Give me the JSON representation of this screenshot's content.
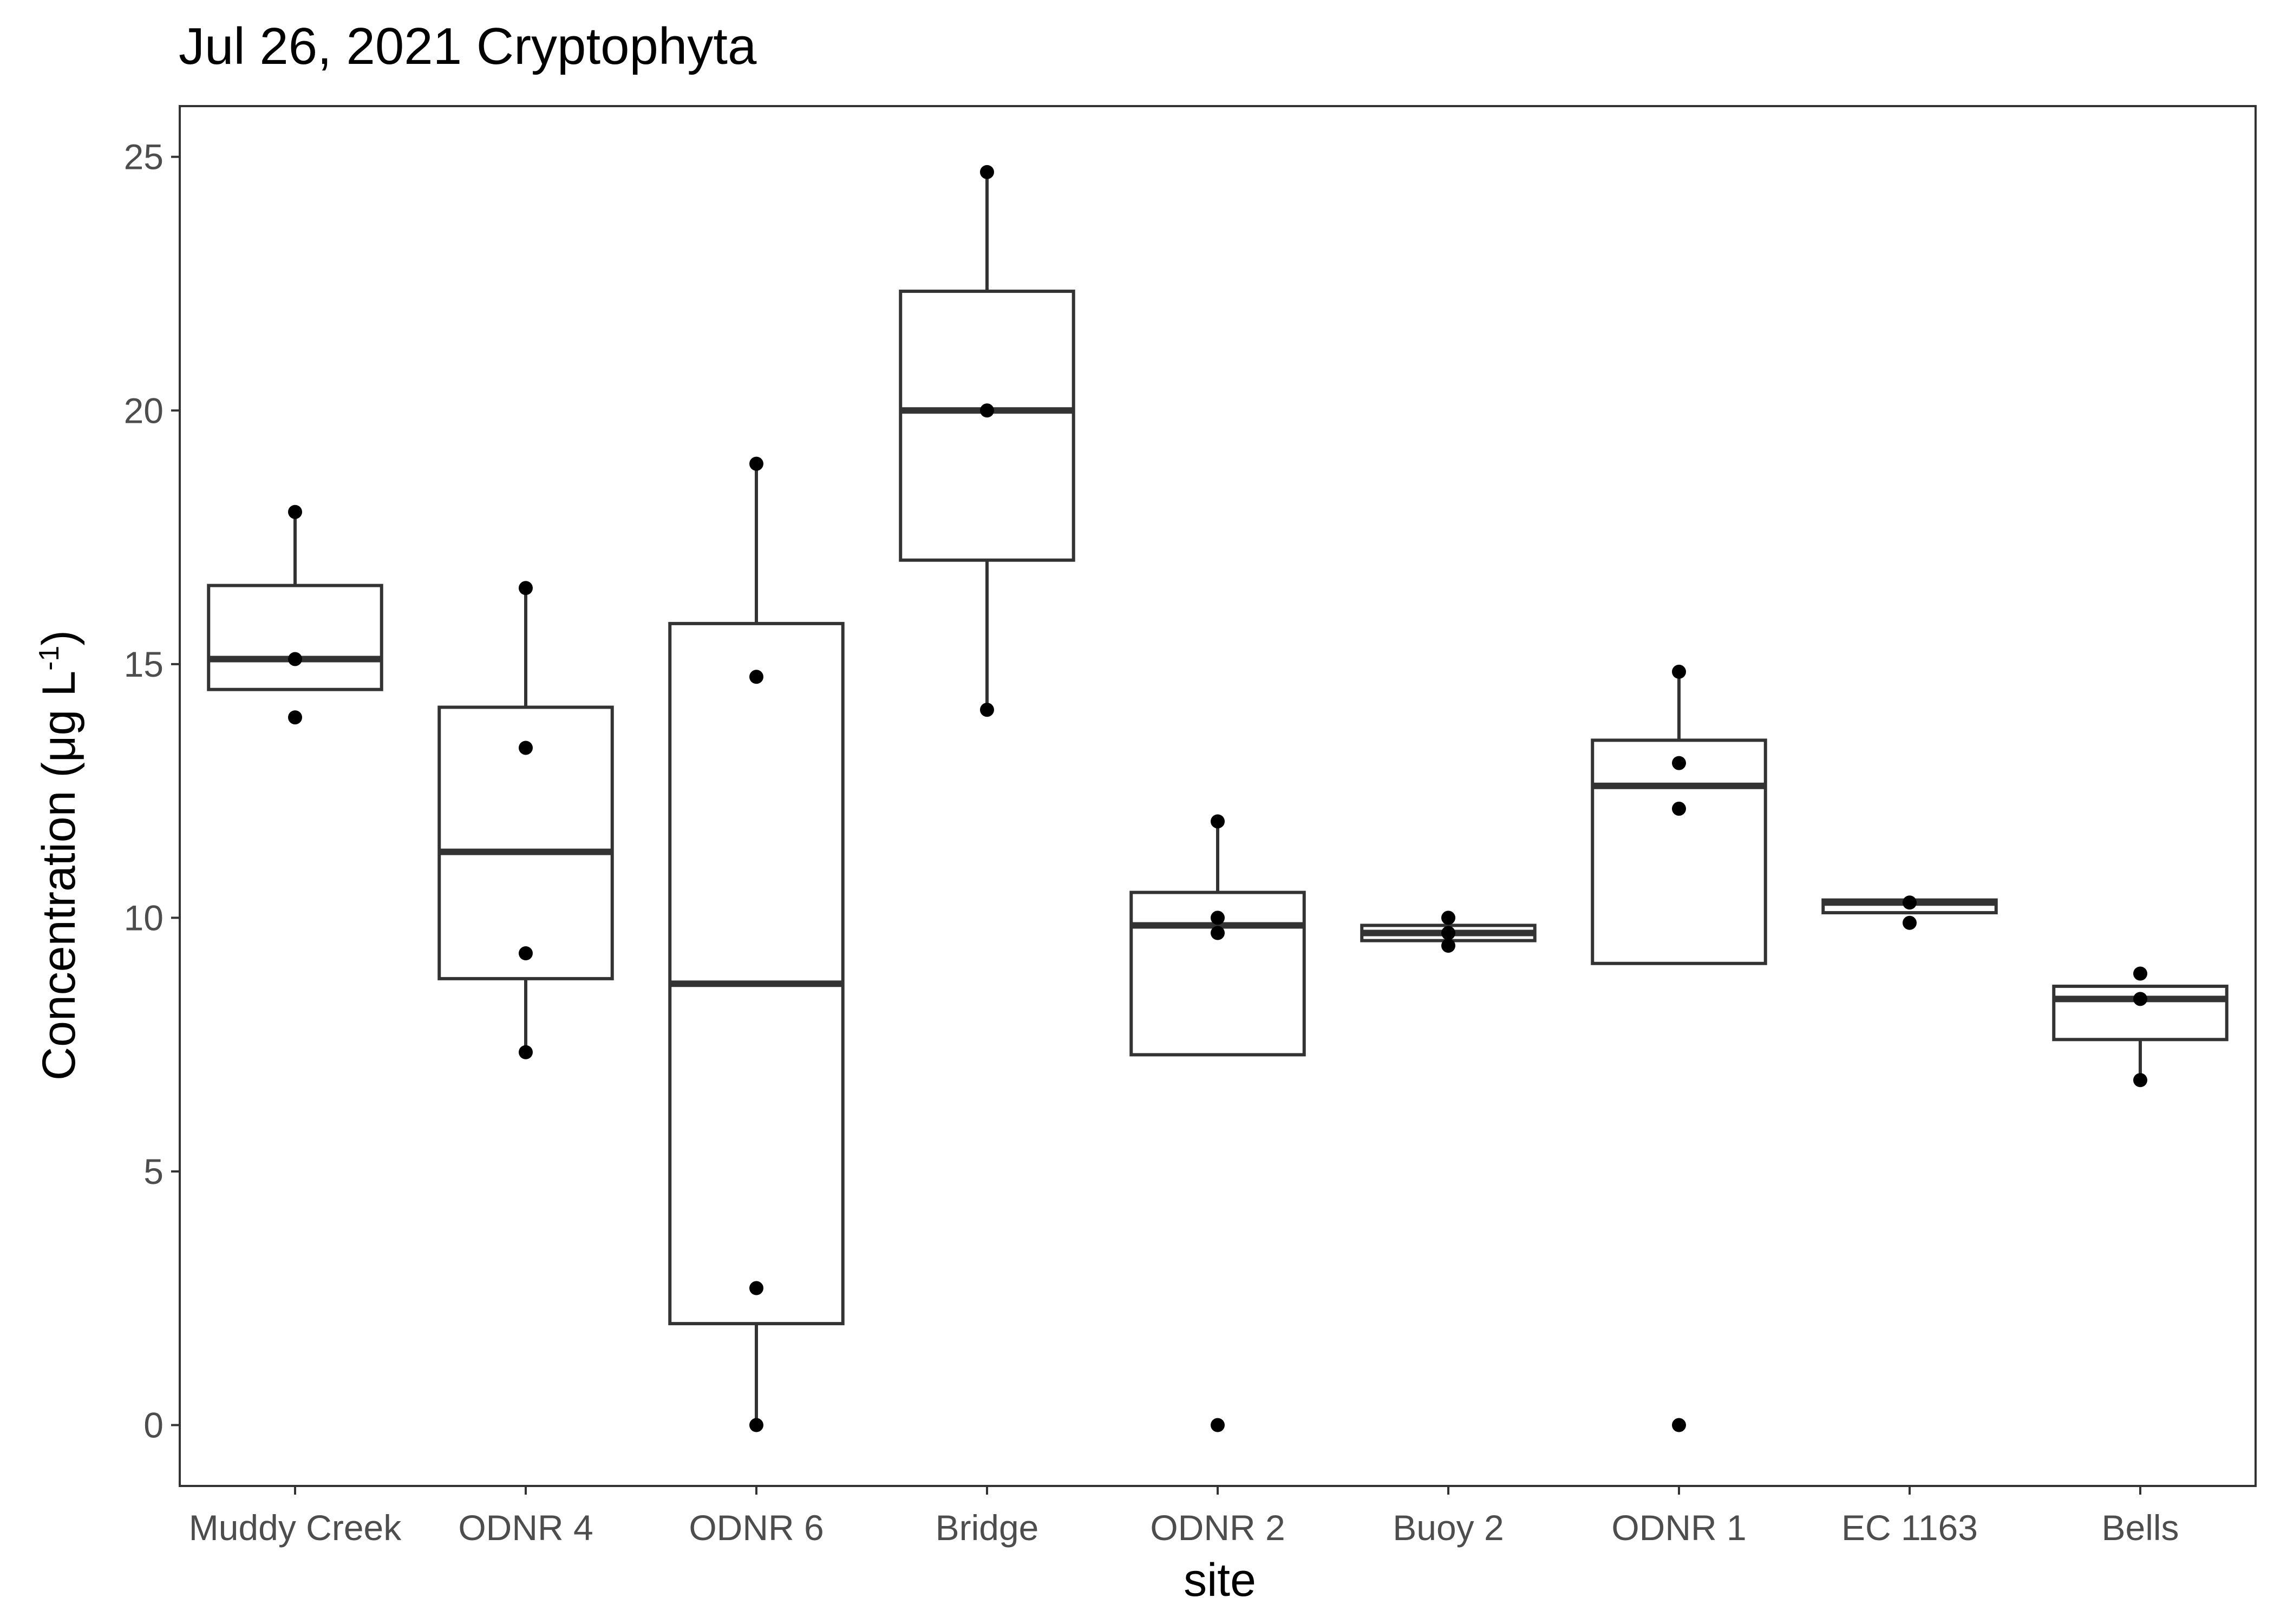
{
  "chart_data": {
    "type": "box",
    "title": "Jul 26, 2021 Cryptophyta",
    "xlabel": "site",
    "ylabel": {
      "text": "Concentration (μg L",
      "superscript": "-1",
      "suffix": ")"
    },
    "ylim": [
      -1.2,
      26
    ],
    "yticks": [
      "0",
      "5",
      "10",
      "15",
      "20",
      "25"
    ],
    "ytick_values": [
      0,
      5,
      10,
      15,
      20,
      25
    ],
    "grid": false,
    "categories": [
      "Muddy Creek",
      "ODNR 4",
      "ODNR 6",
      "Bridge",
      "ODNR 2",
      "Buoy 2",
      "ODNR 1",
      "EC 1163",
      "Bells"
    ],
    "boxes": [
      {
        "site": "Muddy Creek",
        "whisker_low": 14.5,
        "q1": 14.5,
        "median": 15.1,
        "q3": 16.55,
        "whisker_high": 18.0
      },
      {
        "site": "ODNR 4",
        "whisker_low": 7.35,
        "q1": 8.8,
        "median": 11.3,
        "q3": 14.15,
        "whisker_high": 16.5
      },
      {
        "site": "ODNR 6",
        "whisker_low": 0.0,
        "q1": 2.0,
        "median": 8.7,
        "q3": 15.8,
        "whisker_high": 18.95
      },
      {
        "site": "Bridge",
        "whisker_low": 14.1,
        "q1": 17.05,
        "median": 20.0,
        "q3": 22.35,
        "whisker_high": 24.7
      },
      {
        "site": "ODNR 2",
        "whisker_low": 7.3,
        "q1": 7.3,
        "median": 9.85,
        "q3": 10.5,
        "whisker_high": 11.9
      },
      {
        "site": "Buoy 2",
        "whisker_low": 9.55,
        "q1": 9.55,
        "median": 9.7,
        "q3": 9.85,
        "whisker_high": 9.85
      },
      {
        "site": "ODNR 1",
        "whisker_low": 9.1,
        "q1": 9.1,
        "median": 12.6,
        "q3": 13.5,
        "whisker_high": 14.85
      },
      {
        "site": "EC 1163",
        "whisker_low": 10.1,
        "q1": 10.1,
        "median": 10.3,
        "q3": 10.35,
        "whisker_high": 10.35
      },
      {
        "site": "Bells",
        "whisker_low": 6.8,
        "q1": 7.6,
        "median": 8.4,
        "q3": 8.65,
        "whisker_high": 8.65
      }
    ],
    "points": [
      {
        "site": "Muddy Creek",
        "values": [
          18.0,
          15.1,
          13.95
        ]
      },
      {
        "site": "ODNR 4",
        "values": [
          16.5,
          13.35,
          9.3,
          7.35
        ]
      },
      {
        "site": "ODNR 6",
        "values": [
          18.95,
          14.75,
          2.7,
          0.0
        ]
      },
      {
        "site": "Bridge",
        "values": [
          24.7,
          20.0,
          14.1
        ]
      },
      {
        "site": "ODNR 2",
        "values": [
          11.9,
          10.0,
          9.7,
          0.0
        ]
      },
      {
        "site": "Buoy 2",
        "values": [
          10.0,
          9.7,
          9.45
        ]
      },
      {
        "site": "ODNR 1",
        "values": [
          14.85,
          13.05,
          12.15,
          0.0
        ]
      },
      {
        "site": "EC 1163",
        "values": [
          10.3,
          9.9
        ]
      },
      {
        "site": "Bells",
        "values": [
          8.9,
          8.4,
          6.8
        ]
      }
    ],
    "colors": {
      "box_stroke": "#333333",
      "median": "#333333",
      "point": "#000000",
      "panel_border": "#333333",
      "tick_text": "#4d4d4d"
    }
  }
}
